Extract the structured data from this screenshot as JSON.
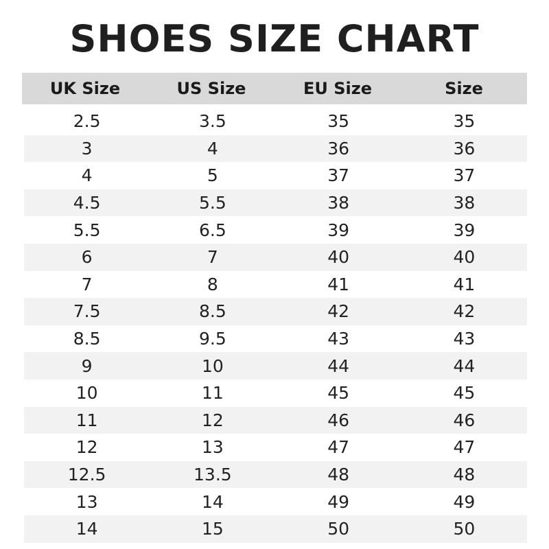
{
  "title": "SHOES SIZE CHART",
  "headers": [
    "UK Size",
    "US Size",
    "EU Size",
    "Size"
  ],
  "rows": [
    [
      "2.5",
      "3.5",
      "35",
      "35"
    ],
    [
      "3",
      "4",
      "36",
      "36"
    ],
    [
      "4",
      "5",
      "37",
      "37"
    ],
    [
      "4.5",
      "5.5",
      "38",
      "38"
    ],
    [
      "5.5",
      "6.5",
      "39",
      "39"
    ],
    [
      "6",
      "7",
      "40",
      "40"
    ],
    [
      "7",
      "8",
      "41",
      "41"
    ],
    [
      "7.5",
      "8.5",
      "42",
      "42"
    ],
    [
      "8.5",
      "9.5",
      "43",
      "43"
    ],
    [
      "9",
      "10",
      "44",
      "44"
    ],
    [
      "10",
      "11",
      "45",
      "45"
    ],
    [
      "11",
      "12",
      "46",
      "46"
    ],
    [
      "12",
      "13",
      "47",
      "47"
    ],
    [
      "12.5",
      "13.5",
      "48",
      "48"
    ],
    [
      "13",
      "14",
      "49",
      "49"
    ],
    [
      "14",
      "15",
      "50",
      "50"
    ]
  ],
  "colors": {
    "header_bg": "#d9d9d9",
    "stripe_bg": "#f2f2f2"
  }
}
